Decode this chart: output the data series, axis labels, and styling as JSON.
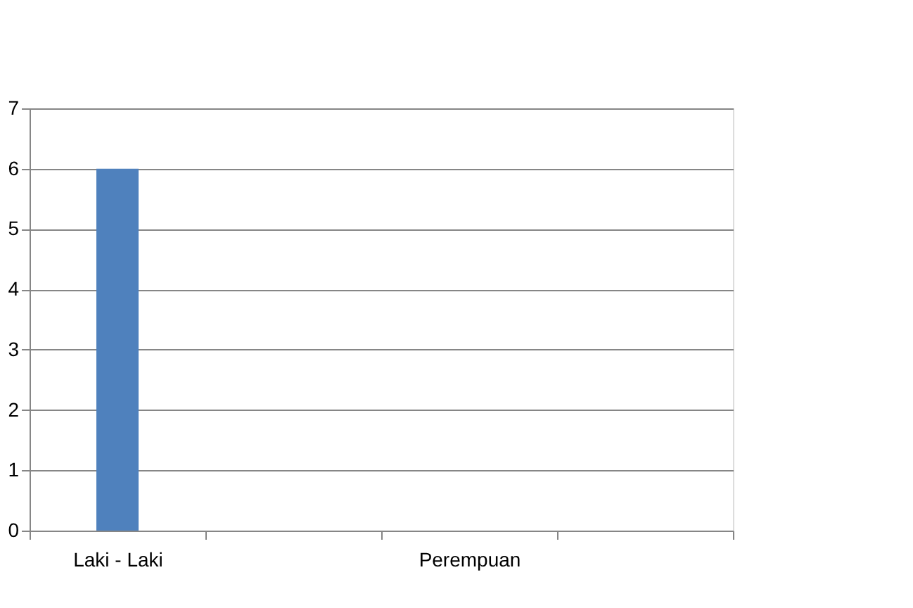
{
  "chart_data": {
    "type": "bar",
    "categories": [
      "Laki - Laki",
      null,
      "Perempuan",
      null
    ],
    "values": [
      6,
      null,
      null,
      null
    ],
    "color": "#4f81bd",
    "ylim": [
      0,
      7
    ],
    "yticks": [
      0,
      1,
      2,
      3,
      4,
      5,
      6,
      7
    ],
    "grid": "y"
  }
}
